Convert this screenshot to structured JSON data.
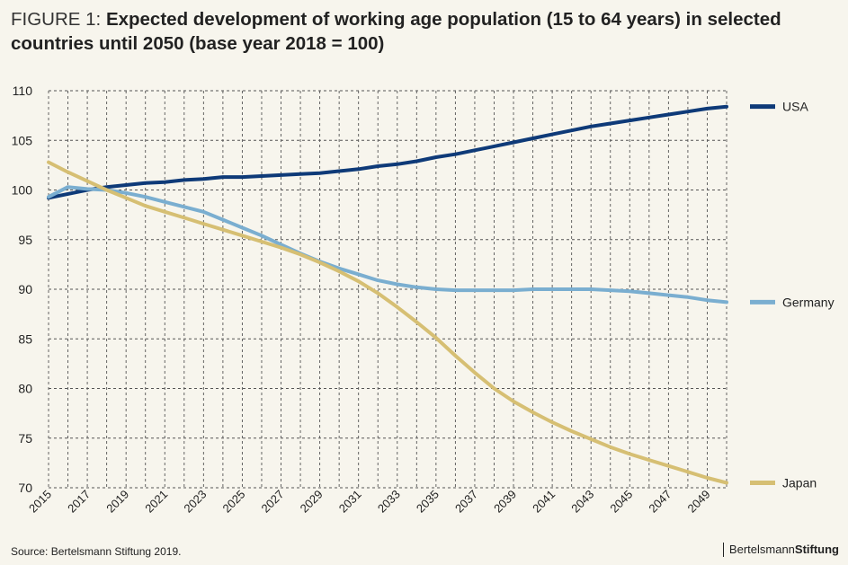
{
  "header": {
    "prefix": "FIGURE 1: ",
    "title": "Expected development of working age population (15 to 64 years) in selected countries until 2050 (base year 2018 = 100)"
  },
  "footer": {
    "source": "Source: Bertelsmann Stiftung 2019.",
    "logo_regular": "Bertelsmann",
    "logo_bold": "Stiftung"
  },
  "chart_data": {
    "type": "line",
    "title": "Expected development of working age population (15 to 64 years) in selected countries until 2050 (base year 2018 = 100)",
    "xlim": [
      2015,
      2050
    ],
    "ylim": [
      70,
      110
    ],
    "yticks": [
      70,
      75,
      80,
      85,
      90,
      95,
      100,
      105,
      110
    ],
    "xtick_labels": [
      "2015",
      "2017",
      "2019",
      "2021",
      "2023",
      "2025",
      "2027",
      "2029",
      "2031",
      "2033",
      "2035",
      "2037",
      "2039",
      "2041",
      "2043",
      "2045",
      "2047",
      "2049"
    ],
    "grid": true,
    "legend": "right, labels at line ends",
    "x": [
      2015,
      2016,
      2017,
      2018,
      2019,
      2020,
      2021,
      2022,
      2023,
      2024,
      2025,
      2026,
      2027,
      2028,
      2029,
      2030,
      2031,
      2032,
      2033,
      2034,
      2035,
      2036,
      2037,
      2038,
      2039,
      2040,
      2041,
      2042,
      2043,
      2044,
      2045,
      2046,
      2047,
      2048,
      2049,
      2050
    ],
    "series": [
      {
        "name": "USA",
        "color": "#0e3a78",
        "values": [
          99.2,
          99.6,
          100.0,
          100.3,
          100.5,
          100.7,
          100.8,
          101.0,
          101.1,
          101.3,
          101.3,
          101.4,
          101.5,
          101.6,
          101.7,
          101.9,
          102.1,
          102.4,
          102.6,
          102.9,
          103.3,
          103.6,
          104.0,
          104.4,
          104.8,
          105.2,
          105.6,
          106.0,
          106.4,
          106.7,
          107.0,
          107.3,
          107.6,
          107.9,
          108.2,
          108.4
        ]
      },
      {
        "name": "Germany",
        "color": "#7aaed0",
        "values": [
          99.3,
          100.3,
          100.1,
          100.0,
          99.7,
          99.3,
          98.8,
          98.3,
          97.8,
          97.0,
          96.2,
          95.4,
          94.5,
          93.6,
          92.8,
          92.1,
          91.5,
          90.9,
          90.5,
          90.2,
          90.0,
          89.9,
          89.9,
          89.9,
          89.9,
          90.0,
          90.0,
          90.0,
          90.0,
          89.9,
          89.8,
          89.6,
          89.4,
          89.2,
          88.9,
          88.7
        ]
      },
      {
        "name": "Japan",
        "color": "#d6bf73",
        "values": [
          102.8,
          101.8,
          100.9,
          100.0,
          99.2,
          98.4,
          97.8,
          97.2,
          96.6,
          96.0,
          95.4,
          94.8,
          94.2,
          93.5,
          92.7,
          91.8,
          90.8,
          89.6,
          88.2,
          86.7,
          85.1,
          83.3,
          81.6,
          80.0,
          78.7,
          77.6,
          76.6,
          75.7,
          74.9,
          74.1,
          73.4,
          72.8,
          72.2,
          71.6,
          71.0,
          70.5
        ]
      }
    ]
  }
}
